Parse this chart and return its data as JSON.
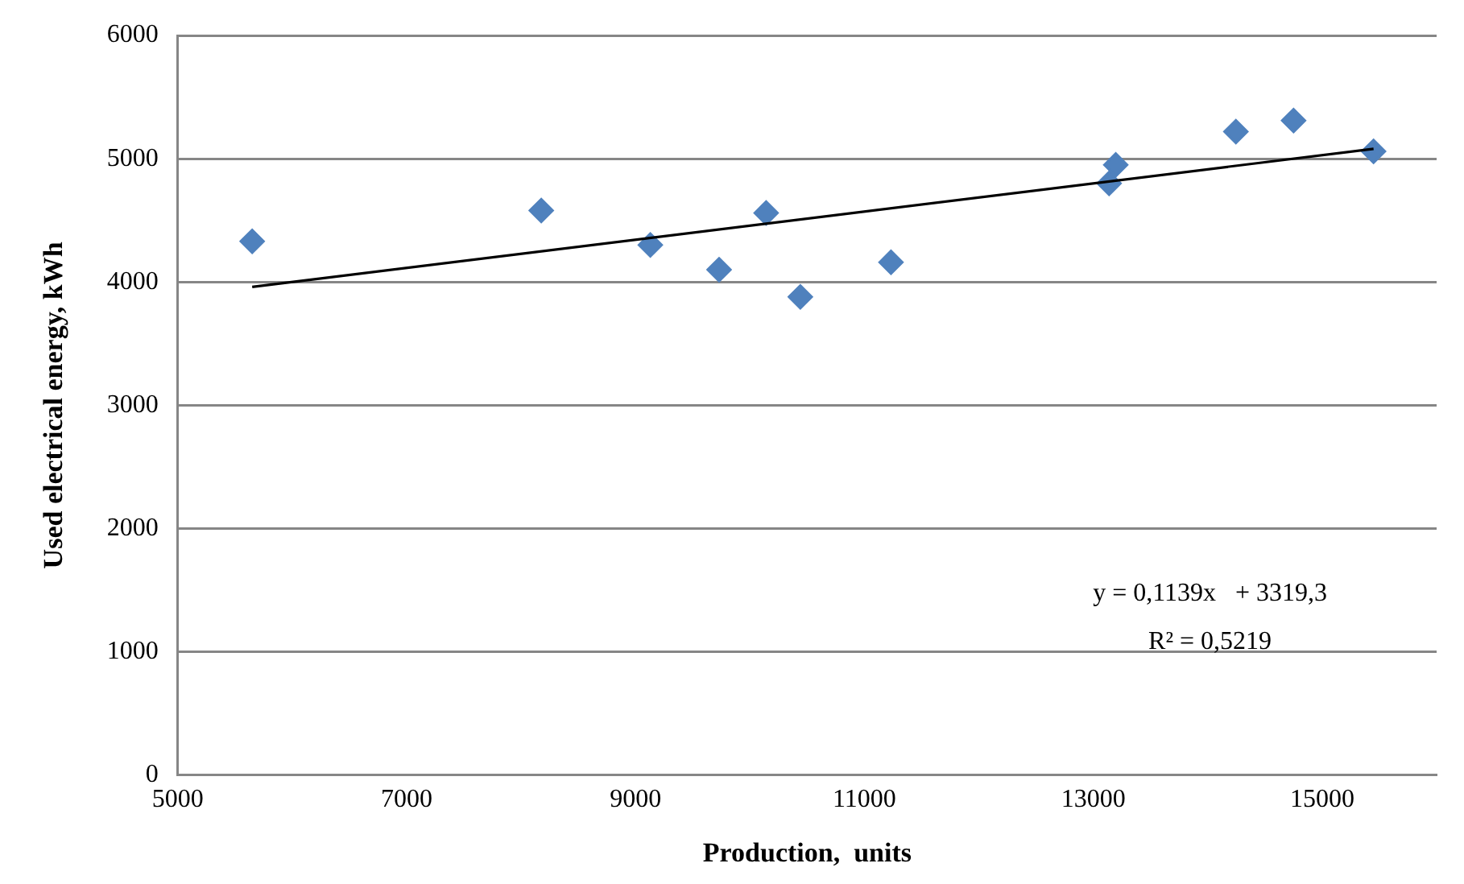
{
  "chart_data": {
    "type": "scatter",
    "xlabel": "Production,  units",
    "ylabel": "Used electrical energy, kWh",
    "xlim": [
      5000,
      16000
    ],
    "xticks": [
      5000,
      7000,
      9000,
      11000,
      13000,
      15000
    ],
    "ylim": [
      0,
      6000
    ],
    "yticks": [
      0,
      1000,
      2000,
      3000,
      4000,
      5000,
      6000
    ],
    "grid": "y",
    "legend": false,
    "marker": "diamond",
    "series": [
      {
        "type": "scatter",
        "color": "#4f81bd",
        "x": [
          5650,
          8176,
          9129,
          9730,
          10141,
          10440,
          11232,
          13138,
          13196,
          14246,
          14750,
          15449
        ],
        "values": [
          4330,
          4580,
          4300,
          4100,
          4560,
          3880,
          4160,
          4800,
          4950,
          5220,
          5310,
          5060
        ]
      },
      {
        "type": "line",
        "color": "#000000",
        "marker": "none",
        "x": [
          5650,
          15449
        ],
        "values": [
          3960,
          5080
        ]
      }
    ],
    "annotations": [
      "y = 0,1139x   + 3319,3",
      "R² = 0,5219"
    ]
  }
}
